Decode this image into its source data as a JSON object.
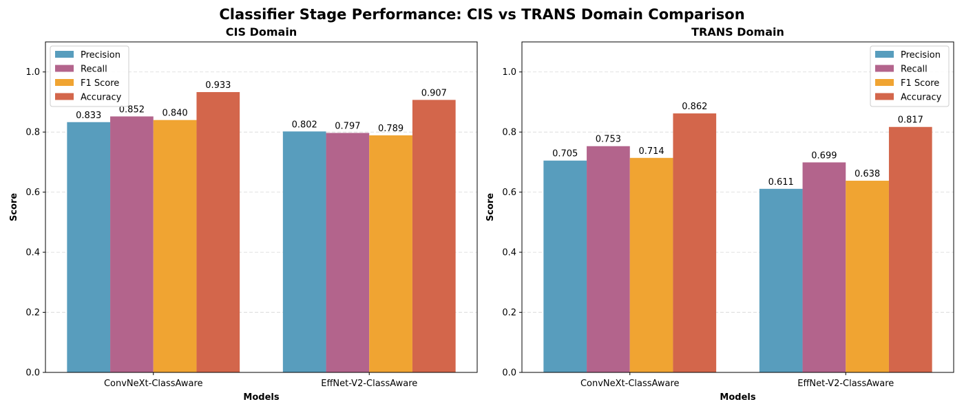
{
  "figure": {
    "title": "Classifier Stage Performance: CIS vs TRANS Domain Comparison"
  },
  "chart_data": [
    {
      "type": "bar",
      "title": "CIS Domain",
      "xlabel": "Models",
      "ylabel": "Score",
      "ylim": [
        0,
        1.1
      ],
      "yticks": [
        "0.0",
        "0.2",
        "0.4",
        "0.6",
        "0.8",
        "1.0"
      ],
      "grid": "y, dashed",
      "legend_position": "top-left",
      "categories": [
        "ConvNeXt-ClassAware",
        "EffNet-V2-ClassAware"
      ],
      "series": [
        {
          "name": "Precision",
          "color": "#589DBD",
          "values": [
            0.833,
            0.802
          ],
          "labels": [
            "0.833",
            "0.802"
          ]
        },
        {
          "name": "Recall",
          "color": "#B3648C",
          "values": [
            0.852,
            0.797
          ],
          "labels": [
            "0.852",
            "0.797"
          ]
        },
        {
          "name": "F1 Score",
          "color": "#F0A432",
          "values": [
            0.84,
            0.789
          ],
          "labels": [
            "0.840",
            "0.789"
          ]
        },
        {
          "name": "Accuracy",
          "color": "#D3664B",
          "values": [
            0.933,
            0.907
          ],
          "labels": [
            "0.933",
            "0.907"
          ]
        }
      ]
    },
    {
      "type": "bar",
      "title": "TRANS Domain",
      "xlabel": "Models",
      "ylabel": "Score",
      "ylim": [
        0,
        1.1
      ],
      "yticks": [
        "0.0",
        "0.2",
        "0.4",
        "0.6",
        "0.8",
        "1.0"
      ],
      "grid": "y, dashed",
      "legend_position": "top-right",
      "categories": [
        "ConvNeXt-ClassAware",
        "EffNet-V2-ClassAware"
      ],
      "series": [
        {
          "name": "Precision",
          "color": "#589DBD",
          "values": [
            0.705,
            0.611
          ],
          "labels": [
            "0.705",
            "0.611"
          ]
        },
        {
          "name": "Recall",
          "color": "#B3648C",
          "values": [
            0.753,
            0.699
          ],
          "labels": [
            "0.753",
            "0.699"
          ]
        },
        {
          "name": "F1 Score",
          "color": "#F0A432",
          "values": [
            0.714,
            0.638
          ],
          "labels": [
            "0.714",
            "0.638"
          ]
        },
        {
          "name": "Accuracy",
          "color": "#D3664B",
          "values": [
            0.862,
            0.817
          ],
          "labels": [
            "0.862",
            "0.817"
          ]
        }
      ]
    }
  ]
}
